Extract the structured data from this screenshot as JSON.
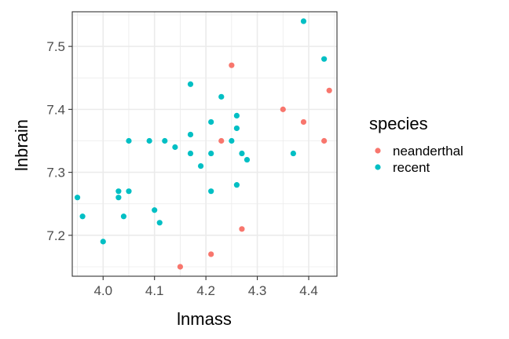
{
  "chart_data": {
    "type": "scatter",
    "xlabel": "lnmass",
    "ylabel": "lnbrain",
    "xlim": [
      3.94,
      4.455
    ],
    "ylim": [
      7.135,
      7.555
    ],
    "x_ticks": [
      4.0,
      4.1,
      4.2,
      4.3,
      4.4
    ],
    "x_tick_labels": [
      "4.0",
      "4.1",
      "4.2",
      "4.3",
      "4.4"
    ],
    "y_ticks": [
      7.2,
      7.3,
      7.4,
      7.5
    ],
    "y_tick_labels": [
      "7.2",
      "7.3",
      "7.4",
      "7.5"
    ],
    "grid": true,
    "legend": {
      "title": "species",
      "position": "right",
      "entries": [
        {
          "label": "neanderthal",
          "color": "#F8766D"
        },
        {
          "label": "recent",
          "color": "#00BFC4"
        }
      ]
    },
    "series": [
      {
        "name": "neanderthal",
        "color": "#F8766D",
        "points": [
          [
            4.25,
            7.47
          ],
          [
            4.35,
            7.4
          ],
          [
            4.44,
            7.43
          ],
          [
            4.39,
            7.38
          ],
          [
            4.43,
            7.35
          ],
          [
            4.23,
            7.35
          ],
          [
            4.27,
            7.21
          ],
          [
            4.21,
            7.17
          ],
          [
            4.15,
            7.15
          ]
        ]
      },
      {
        "name": "recent",
        "color": "#00BFC4",
        "points": [
          [
            4.39,
            7.54
          ],
          [
            4.43,
            7.48
          ],
          [
            4.17,
            7.44
          ],
          [
            4.23,
            7.42
          ],
          [
            4.26,
            7.39
          ],
          [
            4.21,
            7.38
          ],
          [
            4.26,
            7.37
          ],
          [
            4.17,
            7.36
          ],
          [
            4.05,
            7.35
          ],
          [
            4.09,
            7.35
          ],
          [
            4.12,
            7.35
          ],
          [
            4.25,
            7.35
          ],
          [
            4.14,
            7.34
          ],
          [
            4.17,
            7.33
          ],
          [
            4.21,
            7.33
          ],
          [
            4.27,
            7.33
          ],
          [
            4.37,
            7.33
          ],
          [
            4.28,
            7.32
          ],
          [
            4.19,
            7.31
          ],
          [
            4.26,
            7.28
          ],
          [
            4.21,
            7.27
          ],
          [
            4.03,
            7.27
          ],
          [
            4.05,
            7.27
          ],
          [
            3.95,
            7.26
          ],
          [
            4.03,
            7.26
          ],
          [
            4.1,
            7.24
          ],
          [
            3.96,
            7.23
          ],
          [
            4.04,
            7.23
          ],
          [
            4.11,
            7.22
          ],
          [
            4.0,
            7.19
          ]
        ]
      }
    ]
  }
}
